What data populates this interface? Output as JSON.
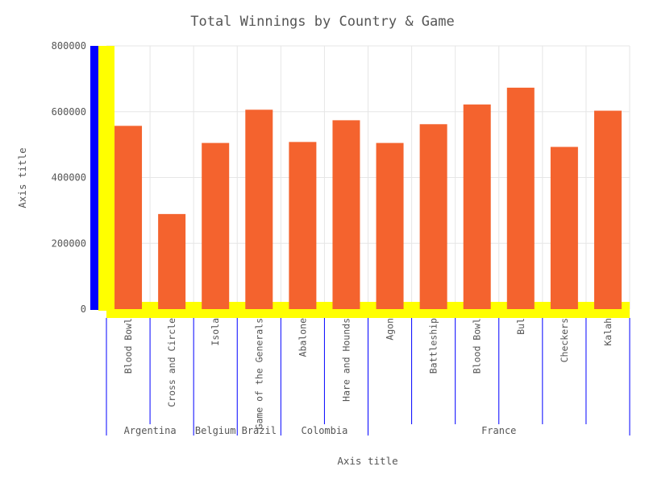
{
  "chart_data": {
    "type": "bar",
    "title": "Total Winnings by Country & Game",
    "xlabel": "Axis title",
    "ylabel": "Axis title",
    "ylim": [
      0,
      800000
    ],
    "yticks": [
      "0",
      "200000",
      "400000",
      "600000",
      "800000"
    ],
    "grid": true,
    "legend": "none",
    "categories": [
      {
        "label": "Blood Bowl",
        "group": "Argentina"
      },
      {
        "label": "Cross and Circle",
        "group": "Argentina"
      },
      {
        "label": "Isola",
        "group": "Belgium"
      },
      {
        "label": "Game of the Generals",
        "group": "Brazil"
      },
      {
        "label": "Abalone",
        "group": "Colombia"
      },
      {
        "label": "Hare and Hounds",
        "group": "Colombia"
      },
      {
        "label": "Agon",
        "group": "France"
      },
      {
        "label": "Battleship",
        "group": "France"
      },
      {
        "label": "Blood Bowl",
        "group": "France"
      },
      {
        "label": "Bul",
        "group": "France"
      },
      {
        "label": "Checkers",
        "group": "France"
      },
      {
        "label": "Kalah",
        "group": "France"
      }
    ],
    "groups": [
      "Argentina",
      "Belgium",
      "Brazil",
      "Colombia",
      "France"
    ],
    "values": [
      557000,
      289000,
      505000,
      606000,
      508000,
      574000,
      505000,
      562000,
      622000,
      673000,
      493000,
      603000
    ],
    "colors": {
      "bar": "#f4632e",
      "grid": "#e6e6e6",
      "highlight_y_axis": "#0000ff",
      "highlight_plot_edge": "#ffff00",
      "group_separator": "#0000ff"
    }
  }
}
